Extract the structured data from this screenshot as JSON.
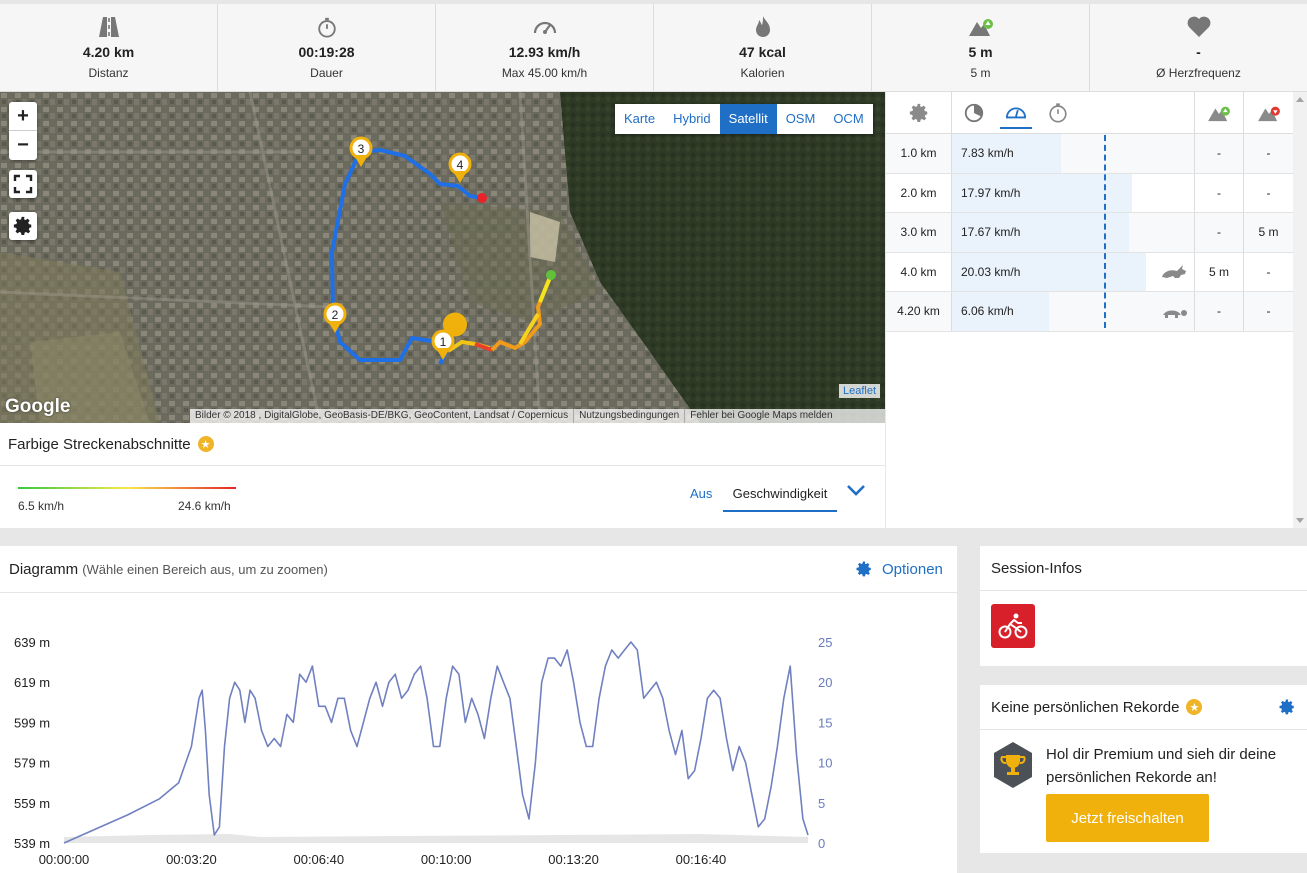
{
  "stats": [
    {
      "icon": "road-icon",
      "value": "4.20 km",
      "label": "Distanz"
    },
    {
      "icon": "stopwatch-icon",
      "value": "00:19:28",
      "label": "Dauer"
    },
    {
      "icon": "speedometer-icon",
      "value": "12.93 km/h",
      "label": "Max 45.00 km/h"
    },
    {
      "icon": "flame-icon",
      "value": "47 kcal",
      "label": "Kalorien"
    },
    {
      "icon": "elevation-up-icon",
      "value": "5 m",
      "label": "5 m"
    },
    {
      "icon": "heart-icon",
      "value": "-",
      "label": "Ø Herzfrequenz"
    }
  ],
  "map": {
    "zoom_in": "+",
    "zoom_out": "−",
    "types": [
      "Karte",
      "Hybrid",
      "Satellit",
      "OSM",
      "OCM"
    ],
    "active_type": "Satellit",
    "markers": [
      "1",
      "2",
      "3",
      "4"
    ],
    "google": "Google",
    "attribution": [
      "Bilder © 2018 , DigitalGlobe, GeoBasis-DE/BKG, GeoContent, Landsat / Copernicus",
      "Nutzungsbedingungen",
      "Fehler bei Google Maps melden"
    ],
    "leaflet": "Leaflet"
  },
  "segments": {
    "title": "Farbige Streckenabschnitte",
    "min": "6.5 km/h",
    "max": "24.6 km/h",
    "off": "Aus",
    "selected": "Geschwindigkeit"
  },
  "splits": {
    "rows": [
      {
        "dist": "1.0 km",
        "speed": "7.83 km/h",
        "fill": 0.45,
        "animal": "",
        "up": "-",
        "down": "-"
      },
      {
        "dist": "2.0 km",
        "speed": "17.97 km/h",
        "fill": 0.74,
        "animal": "",
        "up": "-",
        "down": "-"
      },
      {
        "dist": "3.0 km",
        "speed": "17.67 km/h",
        "fill": 0.73,
        "animal": "",
        "up": "-",
        "down": "5 m"
      },
      {
        "dist": "4.0 km",
        "speed": "20.03 km/h",
        "fill": 0.8,
        "animal": "rabbit-icon",
        "up": "5 m",
        "down": "-"
      },
      {
        "dist": "4.20 km",
        "speed": "6.06 km/h",
        "fill": 0.4,
        "animal": "turtle-icon",
        "up": "-",
        "down": "-"
      }
    ]
  },
  "diagram": {
    "title": "Diagramm",
    "hint": "(Wähle einen Bereich aus, um zu zoomen)",
    "options": "Optionen"
  },
  "chart_data": {
    "type": "line",
    "y_left_ticks": [
      "639 m",
      "619 m",
      "599 m",
      "579 m",
      "559 m",
      "539 m"
    ],
    "y_left_range": [
      539,
      639
    ],
    "y_right_ticks": [
      "25",
      "20",
      "15",
      "10",
      "5",
      "0"
    ],
    "y_right_range": [
      0,
      25
    ],
    "x_ticks": [
      "00:00:00",
      "00:03:20",
      "00:06:40",
      "00:10:00",
      "00:13:20",
      "00:16:40"
    ],
    "series": [
      {
        "values_seconds": [
          0,
          100,
          150,
          180,
          200,
          212,
          217,
          222,
          228,
          236,
          244,
          252,
          260,
          268,
          276,
          284,
          292,
          300,
          310,
          320,
          330,
          340,
          350,
          360,
          370,
          380,
          390,
          400,
          410,
          420,
          430,
          440,
          450,
          460,
          470,
          480,
          490,
          500,
          510,
          520,
          530,
          540,
          550,
          560,
          570,
          580,
          590,
          600,
          610,
          620,
          630,
          640,
          650,
          660,
          670,
          680,
          690,
          700,
          710,
          720,
          730,
          740,
          750,
          760,
          770,
          780,
          790,
          800,
          810,
          820,
          830,
          840,
          850,
          860,
          870,
          880,
          890,
          900,
          910,
          920,
          930,
          940,
          950,
          960,
          970,
          980,
          990,
          1000,
          1010,
          1020,
          1030,
          1040,
          1050,
          1060,
          1070,
          1080,
          1090,
          1100,
          1110,
          1120,
          1130,
          1140,
          1150,
          1160,
          1168
        ],
        "values_speed": [
          0,
          3.5,
          5.5,
          7.5,
          12,
          18,
          19,
          14,
          6,
          1,
          2,
          12,
          18,
          20,
          19,
          15,
          19,
          18,
          14,
          12,
          13,
          12,
          16,
          15,
          21,
          20,
          22,
          17,
          17,
          15,
          18,
          18,
          14,
          12,
          15,
          18,
          20,
          17,
          20,
          21,
          18,
          19,
          21,
          22,
          18,
          12,
          12,
          18,
          22,
          21,
          15,
          18,
          16,
          13,
          18,
          22,
          20,
          18,
          12,
          6,
          3,
          10,
          20,
          23,
          23,
          22,
          24,
          20,
          15,
          12,
          12,
          18,
          22,
          24,
          23,
          24,
          25,
          24,
          18,
          19,
          20,
          18,
          14,
          11,
          14,
          8,
          9,
          13,
          18,
          19,
          18,
          13,
          9,
          12,
          10,
          6,
          2,
          3,
          7,
          12,
          18,
          22,
          11,
          3,
          1
        ]
      }
    ]
  },
  "session": {
    "title": "Session-Infos",
    "sport_icon": "cycling-icon"
  },
  "records": {
    "title": "Keine persönlichen Rekorde",
    "text": "Hol dir Premium und sieh dir deine persönlichen Rekorde an!",
    "button": "Jetzt freischalten"
  }
}
